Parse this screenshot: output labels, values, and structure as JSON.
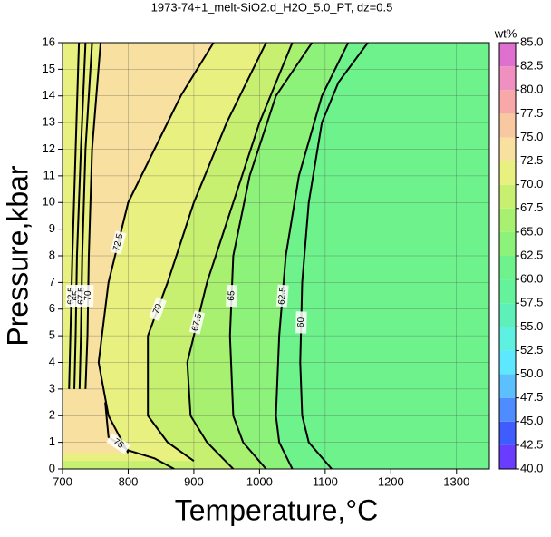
{
  "chart_data": {
    "type": "contour",
    "title": "1973-74+1_melt-SiO2.d_H2O_5.0_PT, dz=0.5",
    "x_label": "Temperature,°C",
    "y_label": "Pressure,kbar",
    "xlim": [
      700,
      1350
    ],
    "ylim": [
      0,
      16
    ],
    "xticks": [
      700,
      800,
      900,
      1000,
      1100,
      1200,
      1300
    ],
    "yticks": [
      0,
      1,
      2,
      3,
      4,
      5,
      6,
      7,
      8,
      9,
      10,
      11,
      12,
      13,
      14,
      15,
      16
    ],
    "grid": true,
    "background": "#6ef28c",
    "colorbar": {
      "label": "wt%",
      "lim": [
        40,
        85
      ],
      "ticks": [
        {
          "value": 40,
          "label": "40.0"
        },
        42.5,
        {
          "value": 45,
          "label": "45.0"
        },
        47.5,
        {
          "value": 50,
          "label": "50.0"
        },
        52.5,
        {
          "value": 55,
          "label": "55.0"
        },
        57.5,
        {
          "value": 60,
          "label": "60.0"
        },
        62.5,
        {
          "value": 65,
          "label": "65.0"
        },
        67.5,
        {
          "value": 70,
          "label": "70.0"
        },
        72.5,
        {
          "value": 75,
          "label": "75.0"
        },
        77.5,
        {
          "value": 80,
          "label": "80.0"
        },
        82.5,
        {
          "value": 85,
          "label": "85.0"
        }
      ],
      "colors": [
        "#6a3cff",
        "#3f5cff",
        "#4f8cff",
        "#5cc0ff",
        "#5ee8ff",
        "#5ef0e0",
        "#5ef0b8",
        "#64f29a",
        "#6ef28c",
        "#8cf27a",
        "#a8f070",
        "#c8f070",
        "#e8f080",
        "#f8e0a0",
        "#f8c8a0",
        "#f8a8a8",
        "#f090c0",
        "#e070d0"
      ]
    },
    "contours": [
      {
        "level": 60,
        "x": [
          1110,
          1075,
          1065,
          1062,
          1065,
          1075,
          1095,
          1120,
          1165
        ],
        "y": [
          0,
          1,
          2,
          4,
          7,
          10,
          13,
          14.5,
          16
        ]
      },
      {
        "level": 62.5,
        "x": [
          1050,
          1030,
          1025,
          1030,
          1040,
          1060,
          1095,
          1135
        ],
        "y": [
          0,
          1,
          2,
          5,
          8,
          11,
          14,
          16
        ]
      },
      {
        "level": 65,
        "x": [
          1010,
          975,
          960,
          955,
          960,
          985,
          1025,
          1080
        ],
        "y": [
          0,
          1,
          2,
          5,
          8,
          11,
          14,
          16
        ]
      },
      {
        "level": 67.5,
        "x": [
          960,
          920,
          895,
          890,
          920,
          960,
          1000,
          1050
        ],
        "y": [
          0,
          1,
          2,
          4,
          7,
          10,
          13,
          16
        ]
      },
      {
        "level": 70,
        "x": [
          900,
          860,
          830,
          830,
          860,
          900,
          950,
          1010
        ],
        "y": [
          0.3,
          1,
          2,
          5,
          7,
          10,
          13,
          16
        ]
      },
      {
        "level": 72.5,
        "x": [
          800,
          770,
          755,
          770,
          800,
          840,
          880,
          930
        ],
        "y": [
          0.6,
          2,
          4,
          7,
          10,
          12,
          14,
          16
        ]
      },
      {
        "level": 75,
        "x": [
          765,
          770,
          800,
          840,
          870
        ],
        "y": [
          2.5,
          1.2,
          0.7,
          0.4,
          0
        ]
      },
      {
        "level": 62.5,
        "x": [
          710,
          712,
          715,
          720,
          725
        ],
        "y": [
          3,
          5,
          8,
          12,
          16
        ]
      },
      {
        "level": 65,
        "x": [
          718,
          720,
          722,
          728,
          735
        ],
        "y": [
          3,
          5,
          8,
          12,
          16
        ]
      },
      {
        "level": 67.5,
        "x": [
          726,
          728,
          730,
          735,
          745
        ],
        "y": [
          3,
          5,
          8,
          12,
          16
        ]
      },
      {
        "level": 70,
        "x": [
          735,
          738,
          740,
          745,
          758
        ],
        "y": [
          3,
          5,
          8,
          12,
          16
        ]
      }
    ]
  }
}
